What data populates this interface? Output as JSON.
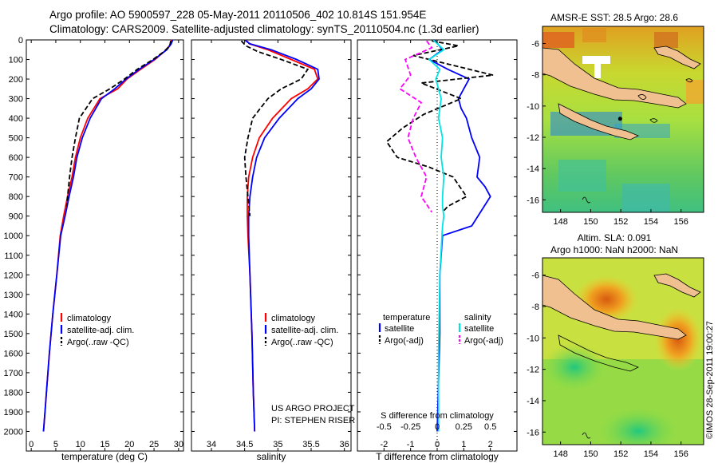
{
  "header": {
    "line1": "Argo profile: AO 5900597_228 05-May-2011 20110506_402 10.814S 151.954E",
    "line2": "Climatology: CARS2009. Satellite-adjusted climatology: synTS_20110504.nc (1.3d earlier)"
  },
  "colors": {
    "climatology": "#ff0000",
    "satellite": "#0000ff",
    "argo": "#000000",
    "sat_salinity": "#00e5e5",
    "argo_salinity": "#ff00ff"
  },
  "chart_data": [
    {
      "type": "line",
      "id": "temperature",
      "xlabel": "temperature (deg C)",
      "ylabel": "",
      "xlim": [
        -1,
        31
      ],
      "ylim": [
        2100,
        0
      ],
      "xticks": [
        0,
        5,
        10,
        15,
        20,
        25,
        30
      ],
      "yticks": [
        0,
        100,
        200,
        300,
        400,
        500,
        600,
        700,
        800,
        900,
        1000,
        1100,
        1200,
        1300,
        1400,
        1500,
        1600,
        1700,
        1800,
        1900,
        2000
      ],
      "legend": [
        "climatology",
        "satellite-adj. clim.",
        "Argo(..raw -QC)"
      ],
      "series": [
        {
          "name": "climatology",
          "color": "#ff0000",
          "dash": "solid",
          "x": [
            28.6,
            28.4,
            27.5,
            25.2,
            22.3,
            19.5,
            17.6,
            14.0,
            11.5,
            10.0,
            9.0,
            8.3,
            7.4,
            6.6,
            5.9,
            5.2,
            4.4,
            3.7,
            3.1,
            2.8,
            2.5
          ],
          "y": [
            0,
            20,
            50,
            100,
            150,
            200,
            250,
            300,
            400,
            500,
            600,
            700,
            800,
            900,
            1000,
            1200,
            1400,
            1600,
            1800,
            1900,
            2000
          ]
        },
        {
          "name": "satellite-adj. clim.",
          "color": "#0000ff",
          "dash": "solid",
          "x": [
            28.8,
            28.5,
            27.6,
            25.0,
            22.0,
            19.3,
            17.0,
            14.3,
            12.0,
            10.4,
            9.3,
            8.6,
            7.7,
            6.9,
            6.0,
            5.2,
            4.4,
            3.7,
            3.1,
            2.8,
            2.5
          ],
          "y": [
            0,
            20,
            50,
            100,
            150,
            200,
            250,
            300,
            400,
            500,
            600,
            700,
            800,
            900,
            1000,
            1200,
            1400,
            1600,
            1800,
            1900,
            2000
          ]
        },
        {
          "name": "Argo(..raw -QC)",
          "color": "#000000",
          "dash": "dash",
          "x": [
            28.4,
            28.2,
            27.0,
            24.8,
            21.6,
            19.0,
            16.0,
            12.5,
            9.8,
            9.0,
            8.3,
            7.8,
            7.2
          ],
          "y": [
            5,
            30,
            60,
            100,
            150,
            200,
            250,
            300,
            400,
            500,
            600,
            700,
            850
          ]
        }
      ]
    },
    {
      "type": "line",
      "id": "salinity",
      "xlabel": "salinity",
      "xlim": [
        33.7,
        36.1
      ],
      "ylim": [
        2100,
        0
      ],
      "xticks": [
        34,
        34.5,
        35,
        35.5,
        36
      ],
      "legend": [
        "climatology",
        "satellite-adj. clim.",
        "Argo(..raw -QC)"
      ],
      "annotations": [
        "US ARGO PROJECT",
        "PI: STEPHEN RISER"
      ],
      "series": [
        {
          "name": "climatology",
          "color": "#ff0000",
          "dash": "solid",
          "x": [
            34.52,
            34.57,
            34.85,
            35.2,
            35.55,
            35.6,
            35.45,
            35.2,
            34.92,
            34.72,
            34.62,
            34.56,
            34.54,
            34.54,
            34.55,
            34.58,
            34.61,
            34.63,
            34.65
          ],
          "y": [
            0,
            20,
            50,
            100,
            150,
            200,
            250,
            300,
            400,
            500,
            600,
            700,
            800,
            900,
            1000,
            1200,
            1500,
            1800,
            2000
          ]
        },
        {
          "name": "satellite-adj. clim.",
          "color": "#0000ff",
          "dash": "solid",
          "x": [
            34.5,
            34.58,
            34.9,
            35.28,
            35.6,
            35.62,
            35.5,
            35.3,
            35.02,
            34.8,
            34.68,
            34.62,
            34.58,
            34.56,
            34.56,
            34.58,
            34.61,
            34.63,
            34.65
          ],
          "y": [
            0,
            20,
            50,
            100,
            150,
            200,
            250,
            300,
            400,
            500,
            600,
            700,
            800,
            900,
            1000,
            1200,
            1500,
            1800,
            2000
          ]
        },
        {
          "name": "Argo(..raw -QC)",
          "color": "#000000",
          "dash": "dash",
          "x": [
            34.45,
            34.52,
            34.7,
            35.05,
            35.45,
            35.35,
            35.05,
            34.85,
            34.62,
            34.55,
            34.5,
            34.52,
            34.55,
            34.58
          ],
          "y": [
            5,
            30,
            60,
            100,
            150,
            200,
            250,
            300,
            400,
            500,
            600,
            700,
            800,
            900
          ]
        }
      ]
    },
    {
      "type": "line",
      "id": "difference",
      "xlabel": "T difference from climatology",
      "xlabel2": "S difference from climatology",
      "xlim": [
        -3,
        3
      ],
      "ylim": [
        2100,
        0
      ],
      "xticks": [
        -2,
        -1,
        0,
        1,
        2
      ],
      "xtick_labels": [
        "-2",
        "-1",
        "0",
        "1",
        "2"
      ],
      "xticks_s": [
        -2,
        -1,
        0,
        1,
        2
      ],
      "xtick_labels_s": [
        "-0.5",
        "-0.25",
        "0",
        "0.25",
        "0.5"
      ],
      "legend_groups": [
        "temperature",
        "salinity"
      ],
      "legend": [
        "satellite",
        "Argo(-adj)",
        "satellite",
        "Argo(-adj)"
      ],
      "series": [
        {
          "name": "T satellite",
          "color": "#0000ff",
          "dash": "solid",
          "x": [
            -0.1,
            0.2,
            -0.3,
            0.4,
            1.2,
            1.0,
            0.8,
            0.9,
            1.1,
            1.3,
            1.6,
            1.5,
            1.8,
            2.0,
            1.3,
            0.2,
            0.1,
            0.1,
            0.0
          ],
          "y": [
            0,
            50,
            100,
            150,
            200,
            250,
            300,
            350,
            400,
            500,
            600,
            700,
            750,
            800,
            950,
            1000,
            1200,
            1500,
            2000
          ]
        },
        {
          "name": "T Argo(-adj)",
          "color": "#000000",
          "dash": "dash",
          "x": [
            -0.2,
            0.8,
            -0.9,
            2.1,
            -0.6,
            0.9,
            -0.5,
            -1.3,
            -1.9,
            -1.5,
            -0.3,
            0.6,
            1.1,
            0.4,
            0.2
          ],
          "y": [
            5,
            30,
            80,
            180,
            220,
            300,
            380,
            450,
            520,
            600,
            650,
            700,
            800,
            850,
            880
          ]
        },
        {
          "name": "S satellite",
          "color": "#00e5e5",
          "dash": "solid",
          "x": [
            -0.15,
            0.25,
            -0.3,
            0.1,
            -0.05,
            0.15,
            0.05,
            0.2,
            0.15,
            0.25,
            0.2,
            0.2,
            0.25,
            0.2,
            0.1,
            0.05,
            0.05
          ],
          "y": [
            0,
            50,
            100,
            150,
            200,
            300,
            400,
            500,
            600,
            700,
            800,
            850,
            900,
            950,
            1200,
            1600,
            2000
          ]
        },
        {
          "name": "S Argo(-adj)",
          "color": "#ff00ff",
          "dash": "dash",
          "x": [
            -0.4,
            -0.2,
            -1.2,
            -1.0,
            -1.4,
            -0.6,
            -0.9,
            -1.1,
            -0.8,
            -0.4,
            -0.6,
            -0.2
          ],
          "y": [
            5,
            40,
            100,
            180,
            250,
            320,
            400,
            500,
            600,
            700,
            800,
            880
          ]
        }
      ]
    }
  ],
  "map_sst": {
    "title": "AMSR-E SST: 28.5  Argo: 28.6",
    "xticks": [
      148,
      150,
      152,
      154,
      156
    ],
    "yticks": [
      -6,
      -8,
      -10,
      -12,
      -14,
      -16
    ],
    "argo_lon": 151.954,
    "argo_lat": -10.814
  },
  "map_sla": {
    "title1": "Altim. SLA: 0.091",
    "title2": "Argo h1000: NaN  h2000: NaN",
    "xticks": [
      148,
      150,
      152,
      154,
      156
    ],
    "yticks": [
      -6,
      -8,
      -10,
      -12,
      -14,
      -16
    ]
  },
  "credit": "©IMOS 28-Sep-2011 19:00:27"
}
